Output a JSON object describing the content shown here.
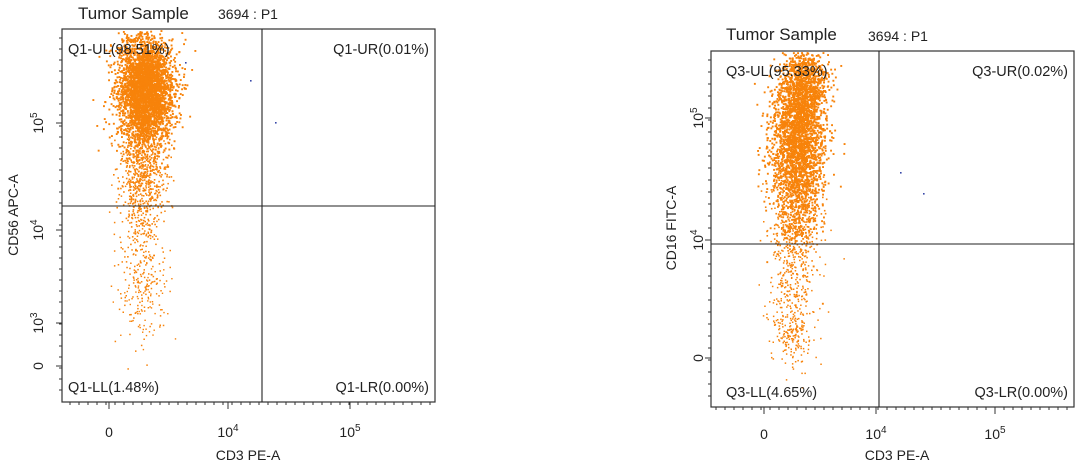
{
  "chart_data": [
    {
      "type": "scatter",
      "title": "Tumor Sample",
      "title_sample": "3694 : P1",
      "xlabel": "CD3 PE-A",
      "ylabel": "CD56 APC-A",
      "x_ticks": [
        {
          "base": "0",
          "exp": ""
        },
        {
          "base": "10",
          "exp": "4"
        },
        {
          "base": "10",
          "exp": "5"
        }
      ],
      "y_ticks": [
        {
          "base": "0",
          "exp": ""
        },
        {
          "base": "10",
          "exp": "3"
        },
        {
          "base": "10",
          "exp": "4"
        },
        {
          "base": "10",
          "exp": "5"
        }
      ],
      "quadrants": {
        "UL": "Q1-UL(98.51%)",
        "UR": "Q1-UR(0.01%)",
        "LL": "Q1-LL(1.48%)",
        "LR": "Q1-LR(0.00%)"
      },
      "quadrant_percentages": {
        "UL": 98.51,
        "UR": 0.01,
        "LL": 1.48,
        "LR": 0.0
      },
      "gate_x_pos": 0.6,
      "gate_y_pos": 0.486,
      "population_color": "#f7830a",
      "outlier_color": "#3848a8"
    },
    {
      "type": "scatter",
      "title": "Tumor Sample",
      "title_sample": "3694 : P1",
      "xlabel": "CD3 PE-A",
      "ylabel": "CD16 FITC-A",
      "x_ticks": [
        {
          "base": "0",
          "exp": ""
        },
        {
          "base": "10",
          "exp": "4"
        },
        {
          "base": "10",
          "exp": "5"
        }
      ],
      "y_ticks": [
        {
          "base": "0",
          "exp": ""
        },
        {
          "base": "10",
          "exp": "4"
        },
        {
          "base": "10",
          "exp": "5"
        }
      ],
      "quadrants": {
        "UL": "Q3-UL(95.33%)",
        "UR": "Q3-UR(0.02%)",
        "LL": "Q3-LL(4.65%)",
        "LR": "Q3-LR(0.00%)"
      },
      "quadrant_percentages": {
        "UL": 95.33,
        "UR": 0.02,
        "LL": 4.65,
        "LR": 0.0
      },
      "gate_x_pos": 0.6,
      "gate_y_pos": 0.51,
      "population_color": "#f7830a",
      "outlier_color": "#3848a8"
    }
  ]
}
